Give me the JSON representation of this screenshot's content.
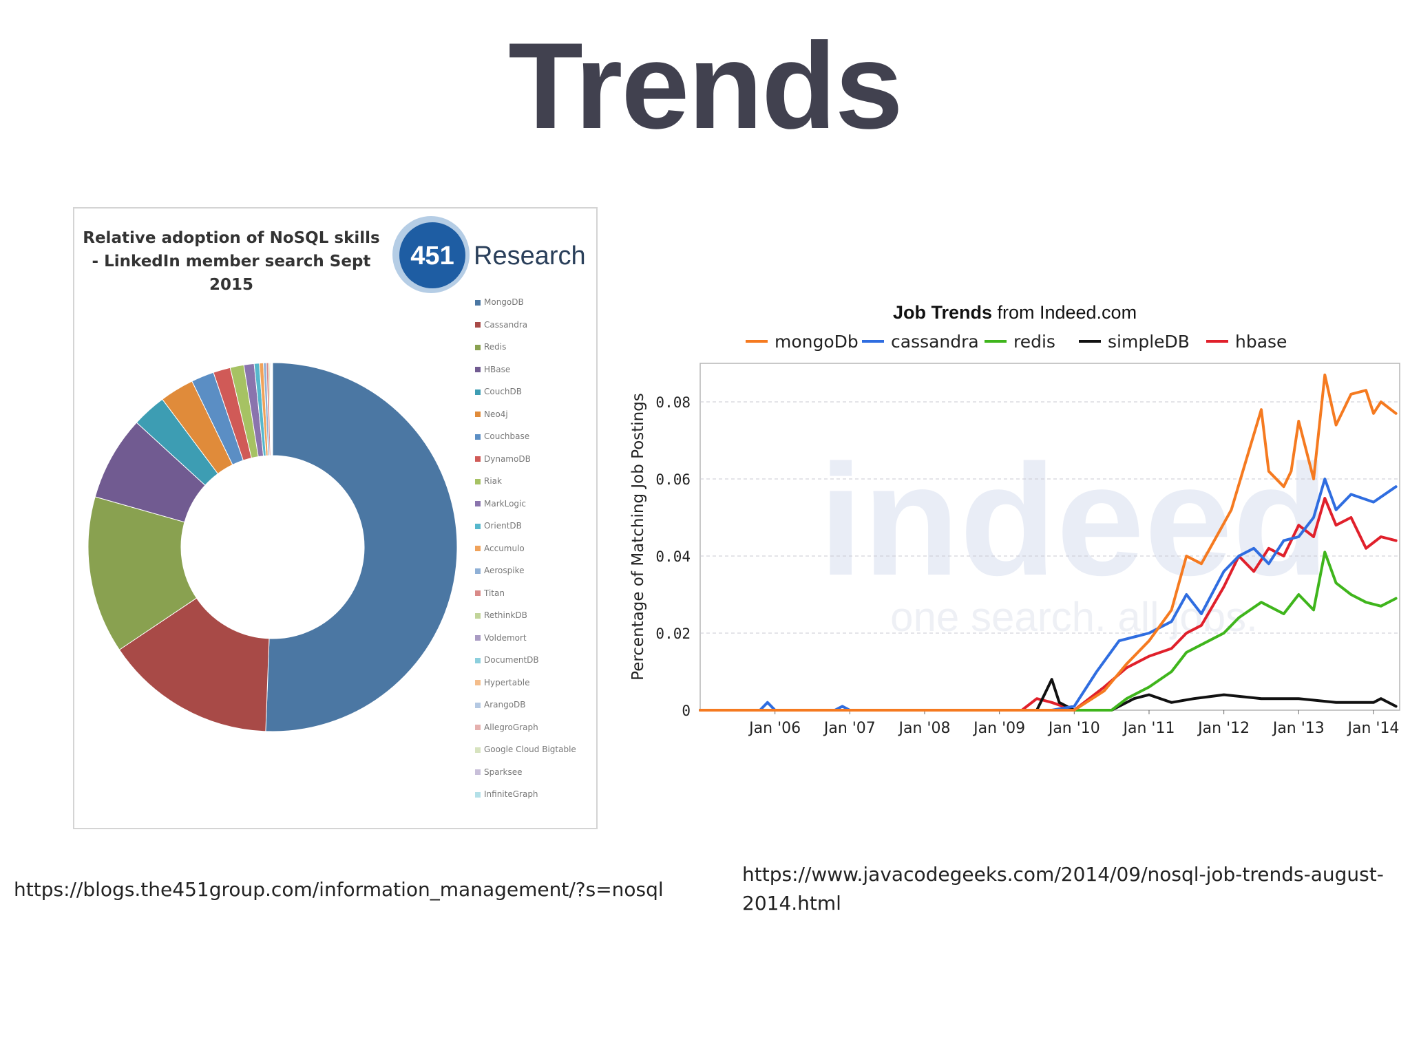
{
  "slide": {
    "title": "Trends",
    "sources": [
      "https://blogs.the451group.com/information_management/?s=nosql",
      "https://www.javacodegeeks.com/2014/09/nosql-job-trends-august-2014.html"
    ]
  },
  "logo": {
    "number": "451",
    "text": "Research"
  },
  "chart_data": [
    {
      "type": "pie",
      "title": "Relative adoption of NoSQL skills - LinkedIn member search Sept 2015",
      "donut": true,
      "legend_position": "right",
      "slices": [
        {
          "label": "MongoDB",
          "value": 50.6,
          "color": "#4b77a3"
        },
        {
          "label": "Cassandra",
          "value": 15.0,
          "color": "#a84a47"
        },
        {
          "label": "Redis",
          "value": 13.8,
          "color": "#89a150"
        },
        {
          "label": "HBase",
          "value": 7.4,
          "color": "#715b91"
        },
        {
          "label": "CouchDB",
          "value": 3.0,
          "color": "#3d9db3"
        },
        {
          "label": "Neo4j",
          "value": 3.0,
          "color": "#e08b3a"
        },
        {
          "label": "Couchbase",
          "value": 2.0,
          "color": "#5b8ec4"
        },
        {
          "label": "DynamoDB",
          "value": 1.5,
          "color": "#d05a57"
        },
        {
          "label": "Riak",
          "value": 1.2,
          "color": "#a6c263"
        },
        {
          "label": "MarkLogic",
          "value": 0.9,
          "color": "#8a74ad"
        },
        {
          "label": "OrientDB",
          "value": 0.45,
          "color": "#56b7cc"
        },
        {
          "label": "Accumulo",
          "value": 0.35,
          "color": "#f0a25a"
        },
        {
          "label": "Aerospike",
          "value": 0.25,
          "color": "#8fb0d6"
        },
        {
          "label": "Titan",
          "value": 0.2,
          "color": "#d98a88"
        },
        {
          "label": "RethinkDB",
          "value": 0.1,
          "color": "#c1d499"
        },
        {
          "label": "Voldemort",
          "value": 0.07,
          "color": "#a99bc3"
        },
        {
          "label": "DocumentDB",
          "value": 0.05,
          "color": "#8ccfdd"
        },
        {
          "label": "Hypertable",
          "value": 0.04,
          "color": "#f4bd8b"
        },
        {
          "label": "ArangoDB",
          "value": 0.03,
          "color": "#b4c8e2"
        },
        {
          "label": "AllegroGraph",
          "value": 0.02,
          "color": "#e5b0ae"
        },
        {
          "label": "Google Cloud Bigtable",
          "value": 0.02,
          "color": "#d7e3bf"
        },
        {
          "label": "Sparksee",
          "value": 0.01,
          "color": "#c8bfd9"
        },
        {
          "label": "InfiniteGraph",
          "value": 0.01,
          "color": "#b3e0e8"
        }
      ]
    },
    {
      "type": "line",
      "title_bold": "Job Trends",
      "title_rest": " from Indeed.com",
      "ylabel": "Percentage of Matching Job Postings",
      "ylim": [
        0,
        0.09
      ],
      "yticks": [
        0,
        0.02,
        0.04,
        0.06,
        0.08
      ],
      "ytick_labels": [
        "0",
        "0.02",
        "0.04",
        "0.06",
        "0.08"
      ],
      "xlim": [
        2005.0,
        2014.35
      ],
      "xticks": [
        2006,
        2007,
        2008,
        2009,
        2010,
        2011,
        2012,
        2013,
        2014
      ],
      "xtick_labels": [
        "Jan '06",
        "Jan '07",
        "Jan '08",
        "Jan '09",
        "Jan '10",
        "Jan '11",
        "Jan '12",
        "Jan '13",
        "Jan '14"
      ],
      "grid": "horizontal dashed",
      "legend_position": "top",
      "watermark": {
        "big": "indeed",
        "small": "one search. all jobs."
      },
      "series": [
        {
          "name": "mongoDb",
          "color": "#f57a20",
          "x": [
            2005.0,
            2009.5,
            2010.0,
            2010.4,
            2010.7,
            2011.0,
            2011.3,
            2011.5,
            2011.7,
            2011.9,
            2012.1,
            2012.3,
            2012.5,
            2012.6,
            2012.8,
            2012.9,
            2013.0,
            2013.2,
            2013.35,
            2013.5,
            2013.7,
            2013.9,
            2014.0,
            2014.1,
            2014.3
          ],
          "y": [
            0,
            0,
            0,
            0.005,
            0.012,
            0.018,
            0.026,
            0.04,
            0.038,
            0.045,
            0.052,
            0.065,
            0.078,
            0.062,
            0.058,
            0.062,
            0.075,
            0.06,
            0.087,
            0.074,
            0.082,
            0.083,
            0.077,
            0.08,
            0.077
          ]
        },
        {
          "name": "cassandra",
          "color": "#2f6de0",
          "x": [
            2005.0,
            2005.8,
            2005.9,
            2006.0,
            2006.8,
            2006.9,
            2007.0,
            2009.7,
            2010.0,
            2010.3,
            2010.6,
            2011.0,
            2011.3,
            2011.5,
            2011.7,
            2012.0,
            2012.2,
            2012.4,
            2012.6,
            2012.8,
            2013.0,
            2013.2,
            2013.35,
            2013.5,
            2013.7,
            2014.0,
            2014.3
          ],
          "y": [
            0,
            0,
            0.002,
            0,
            0,
            0.001,
            0,
            0,
            0.001,
            0.01,
            0.018,
            0.02,
            0.023,
            0.03,
            0.025,
            0.036,
            0.04,
            0.042,
            0.038,
            0.044,
            0.045,
            0.05,
            0.06,
            0.052,
            0.056,
            0.054,
            0.058
          ]
        },
        {
          "name": "redis",
          "color": "#3fb51c",
          "x": [
            2005.0,
            2010.5,
            2010.7,
            2011.0,
            2011.3,
            2011.5,
            2011.8,
            2012.0,
            2012.2,
            2012.5,
            2012.8,
            2013.0,
            2013.2,
            2013.35,
            2013.5,
            2013.7,
            2013.9,
            2014.1,
            2014.3
          ],
          "y": [
            0,
            0,
            0.003,
            0.006,
            0.01,
            0.015,
            0.018,
            0.02,
            0.024,
            0.028,
            0.025,
            0.03,
            0.026,
            0.041,
            0.033,
            0.03,
            0.028,
            0.027,
            0.029
          ]
        },
        {
          "name": "simpleDB",
          "color": "#111111",
          "x": [
            2005.0,
            2009.5,
            2009.6,
            2009.7,
            2009.8,
            2009.9,
            2010.0,
            2010.5,
            2010.8,
            2011.0,
            2011.3,
            2011.6,
            2012.0,
            2012.5,
            2013.0,
            2013.5,
            2014.0,
            2014.1,
            2014.3
          ],
          "y": [
            0,
            0,
            0.004,
            0.008,
            0.002,
            0.001,
            0,
            0,
            0.003,
            0.004,
            0.002,
            0.003,
            0.004,
            0.003,
            0.003,
            0.002,
            0.002,
            0.003,
            0.001
          ]
        },
        {
          "name": "hbase",
          "color": "#e0202b",
          "x": [
            2005.0,
            2009.3,
            2009.5,
            2009.7,
            2010.0,
            2010.4,
            2010.7,
            2011.0,
            2011.3,
            2011.5,
            2011.7,
            2012.0,
            2012.2,
            2012.4,
            2012.6,
            2012.8,
            2013.0,
            2013.2,
            2013.35,
            2013.5,
            2013.7,
            2013.9,
            2014.1,
            2014.3
          ],
          "y": [
            0,
            0,
            0.003,
            0.002,
            0,
            0.006,
            0.011,
            0.014,
            0.016,
            0.02,
            0.022,
            0.032,
            0.04,
            0.036,
            0.042,
            0.04,
            0.048,
            0.045,
            0.055,
            0.048,
            0.05,
            0.042,
            0.045,
            0.044
          ]
        }
      ]
    }
  ]
}
